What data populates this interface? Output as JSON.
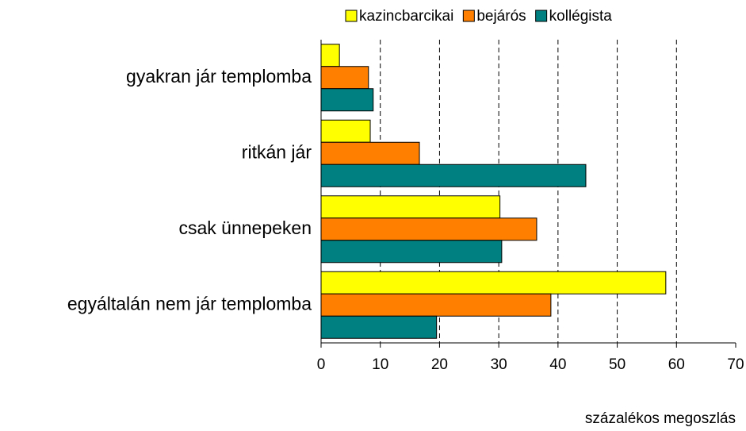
{
  "chart_data": {
    "type": "barh",
    "categories": [
      "gyakran jár templomba",
      "ritkán jár",
      "csak ünnepeken",
      "egyáltalán nem jár templomba"
    ],
    "series": [
      {
        "name": "kazincbarcikai",
        "color": "#ffff00",
        "values": [
          3.1,
          8.3,
          30.2,
          58.2
        ]
      },
      {
        "name": "bejárós",
        "color": "#ff8000",
        "values": [
          8.0,
          16.6,
          36.4,
          38.8
        ]
      },
      {
        "name": "kollégista",
        "color": "#008080",
        "values": [
          8.8,
          44.7,
          30.5,
          19.5
        ]
      }
    ],
    "xlim": [
      0,
      70
    ],
    "xticks": [
      0,
      10,
      20,
      30,
      40,
      50,
      60,
      70
    ],
    "x_label": "százalékos megoszlás",
    "grid": true
  }
}
